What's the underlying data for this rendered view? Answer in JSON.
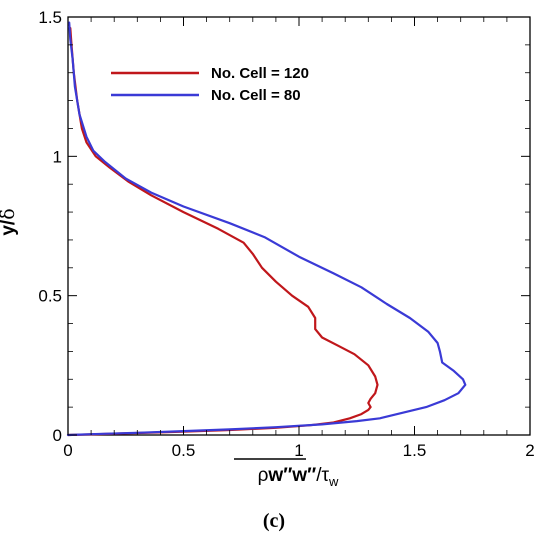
{
  "chart_data": {
    "type": "line",
    "xlabel": "ρw″w″/τw",
    "xlabel_parts": {
      "rho": "ρ",
      "ww": "w″w″",
      "slash": "/τ",
      "sub": "w"
    },
    "ylabel": "y/δ",
    "xlim": [
      0,
      2
    ],
    "ylim": [
      0,
      1.5
    ],
    "xticks": [
      0,
      0.5,
      1,
      1.5,
      2
    ],
    "xtick_labels": [
      "0",
      "0.5",
      "1",
      "1.5",
      "2"
    ],
    "yticks": [
      0,
      0.5,
      1,
      1.5
    ],
    "ytick_labels": [
      "0",
      "0.5",
      "1",
      "1.5"
    ],
    "grid": false,
    "legend_position": "top-left",
    "series": [
      {
        "name": "No. Cell = 120",
        "color": "#c0171b",
        "points": [
          [
            0.0,
            0.0
          ],
          [
            0.1,
            0.002
          ],
          [
            0.3,
            0.007
          ],
          [
            0.5,
            0.012
          ],
          [
            0.7,
            0.018
          ],
          [
            0.9,
            0.026
          ],
          [
            1.05,
            0.035
          ],
          [
            1.15,
            0.045
          ],
          [
            1.22,
            0.06
          ],
          [
            1.27,
            0.075
          ],
          [
            1.3,
            0.09
          ],
          [
            1.31,
            0.1
          ],
          [
            1.3,
            0.115
          ],
          [
            1.31,
            0.13
          ],
          [
            1.33,
            0.15
          ],
          [
            1.34,
            0.18
          ],
          [
            1.33,
            0.21
          ],
          [
            1.3,
            0.25
          ],
          [
            1.24,
            0.29
          ],
          [
            1.17,
            0.32
          ],
          [
            1.1,
            0.35
          ],
          [
            1.07,
            0.38
          ],
          [
            1.07,
            0.42
          ],
          [
            1.04,
            0.46
          ],
          [
            0.97,
            0.5
          ],
          [
            0.9,
            0.55
          ],
          [
            0.84,
            0.6
          ],
          [
            0.8,
            0.65
          ],
          [
            0.76,
            0.69
          ],
          [
            0.65,
            0.74
          ],
          [
            0.5,
            0.8
          ],
          [
            0.36,
            0.86
          ],
          [
            0.26,
            0.91
          ],
          [
            0.18,
            0.96
          ],
          [
            0.12,
            1.0
          ],
          [
            0.08,
            1.05
          ],
          [
            0.06,
            1.1
          ],
          [
            0.04,
            1.2
          ],
          [
            0.025,
            1.3
          ],
          [
            0.015,
            1.4
          ],
          [
            0.01,
            1.46
          ]
        ]
      },
      {
        "name": "No. Cell = 80",
        "color": "#3a3ad6",
        "points": [
          [
            0.0,
            0.0
          ],
          [
            0.1,
            0.003
          ],
          [
            0.3,
            0.008
          ],
          [
            0.5,
            0.014
          ],
          [
            0.7,
            0.02
          ],
          [
            0.9,
            0.028
          ],
          [
            1.1,
            0.038
          ],
          [
            1.25,
            0.05
          ],
          [
            1.35,
            0.06
          ],
          [
            1.45,
            0.08
          ],
          [
            1.55,
            0.1
          ],
          [
            1.63,
            0.125
          ],
          [
            1.69,
            0.15
          ],
          [
            1.72,
            0.18
          ],
          [
            1.71,
            0.2
          ],
          [
            1.67,
            0.23
          ],
          [
            1.62,
            0.26
          ],
          [
            1.61,
            0.3
          ],
          [
            1.6,
            0.33
          ],
          [
            1.56,
            0.37
          ],
          [
            1.48,
            0.42
          ],
          [
            1.38,
            0.47
          ],
          [
            1.27,
            0.53
          ],
          [
            1.15,
            0.58
          ],
          [
            1.0,
            0.64
          ],
          [
            0.85,
            0.71
          ],
          [
            0.7,
            0.76
          ],
          [
            0.5,
            0.82
          ],
          [
            0.36,
            0.87
          ],
          [
            0.25,
            0.92
          ],
          [
            0.16,
            0.98
          ],
          [
            0.11,
            1.02
          ],
          [
            0.08,
            1.07
          ],
          [
            0.05,
            1.15
          ],
          [
            0.03,
            1.25
          ],
          [
            0.02,
            1.35
          ],
          [
            0.01,
            1.42
          ],
          [
            0.005,
            1.48
          ]
        ]
      }
    ]
  },
  "caption": "(c)"
}
